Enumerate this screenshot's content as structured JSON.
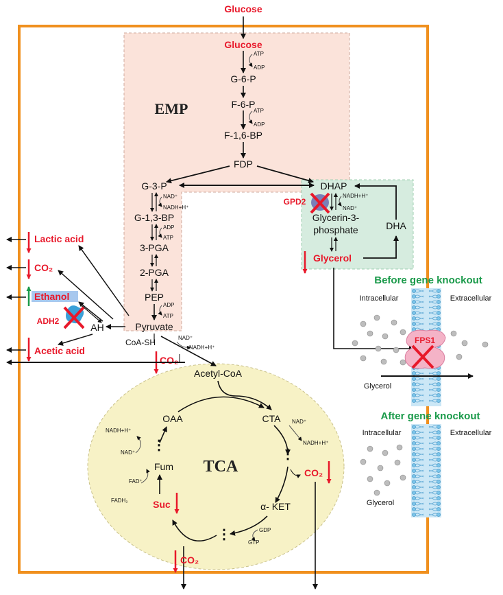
{
  "inputs": {
    "glucose_top": "Glucose"
  },
  "emp": {
    "title": "EMP",
    "glucose": "Glucose",
    "g6p": "G-6-P",
    "f6p": "F-6-P",
    "f16bp": "F-1,6-BP",
    "fdp": "FDP",
    "g3p": "G-3-P",
    "g13bp": "G-1,3-BP",
    "pga3": "3-PGA",
    "pga2": "2-PGA",
    "pep": "PEP",
    "pyruvate": "Pyruvate"
  },
  "cofactors": {
    "atp": "ATP",
    "adp": "ADP",
    "nad": "NAD⁺",
    "nadh": "NADH+H⁺",
    "fadh2": "FADH₂",
    "fad": "FAD⁺",
    "gdp": "GDP",
    "gtp": "GTP",
    "coash": "CoA-SH"
  },
  "glycerol_branch": {
    "dhap": "DHAP",
    "gpd2": "GPD2",
    "glycerin3p_line1": "Glycerin-3-",
    "glycerin3p_line2": "phosphate",
    "dha": "DHA",
    "glycerol": "Glycerol"
  },
  "byproducts": {
    "lactic": "Lactic acid",
    "co2": "CO₂",
    "ethanol": "Ethanol",
    "adh2": "ADH2",
    "ah": "AH",
    "acetic": "Acetic acid"
  },
  "tca": {
    "title": "TCA",
    "acetylcoa": "Acetyl-CoA",
    "oaa": "OAA",
    "cta": "CTA",
    "fum": "Fum",
    "suc": "Suc",
    "aket": "α- KET",
    "dots": "⋮"
  },
  "membrane": {
    "before": "Before gene knockout",
    "after": "After gene knockout",
    "intracellular": "Intracellular",
    "extracellular": "Extracellular",
    "fps1": "FPS1",
    "glycerol": "Glycerol"
  },
  "colors": {
    "cell_border": "#f0901e",
    "emp_fill": "#fbe3da",
    "glycerol_fill": "#d6ecdf",
    "tca_fill": "#f7f2c6",
    "membrane": "#7cc5ea",
    "red": "#e8182a",
    "green": "#1a9a4a"
  }
}
